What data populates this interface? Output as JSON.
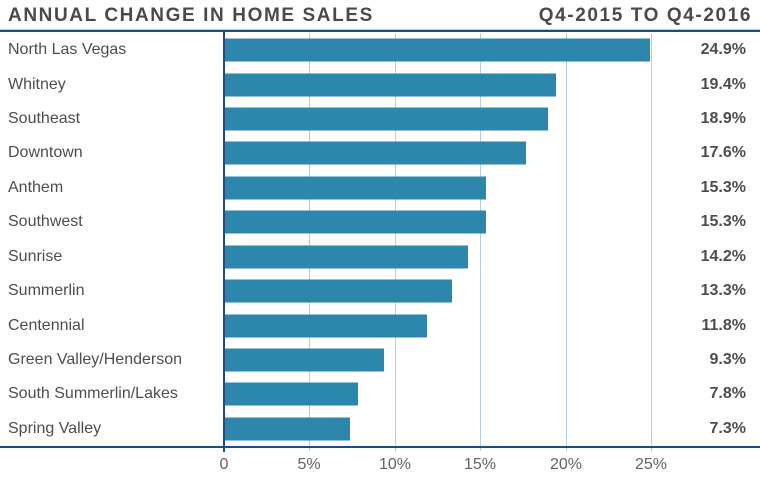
{
  "header": {
    "title": "ANNUAL CHANGE IN HOME SALES",
    "period": "Q4-2015 TO Q4-2016"
  },
  "chart_data": {
    "type": "bar",
    "orientation": "horizontal",
    "title": "ANNUAL CHANGE IN HOME SALES",
    "subtitle": "Q4-2015 TO Q4-2016",
    "categories": [
      "North Las Vegas",
      "Whitney",
      "Southeast",
      "Downtown",
      "Anthem",
      "Southwest",
      "Sunrise",
      "Summerlin",
      "Centennial",
      "Green Valley/Henderson",
      "South Summerlin/Lakes",
      "Spring Valley"
    ],
    "values": [
      24.9,
      19.4,
      18.9,
      17.6,
      15.3,
      15.3,
      14.2,
      13.3,
      11.8,
      9.3,
      7.8,
      7.3
    ],
    "value_labels": [
      "24.9%",
      "19.4%",
      "18.9%",
      "17.6%",
      "15.3%",
      "15.3%",
      "14.2%",
      "13.3%",
      "11.8%",
      "9.3%",
      "7.8%",
      "7.3%"
    ],
    "xlabel": "",
    "ylabel": "",
    "xlim": [
      0,
      30
    ],
    "x_ticks": [
      0,
      5,
      10,
      15,
      20,
      25
    ],
    "x_tick_labels": [
      "0",
      "5%",
      "10%",
      "15%",
      "20%",
      "25%"
    ],
    "grid": true,
    "legend": false,
    "unit": "%"
  },
  "colors": {
    "bar": "#2d86ab",
    "axis_line": "#1e4e7e",
    "gridline": "#b7cddd",
    "title_text": "#4a4a4a",
    "label_text": "#4d4d4d",
    "tick_text": "#636363"
  }
}
